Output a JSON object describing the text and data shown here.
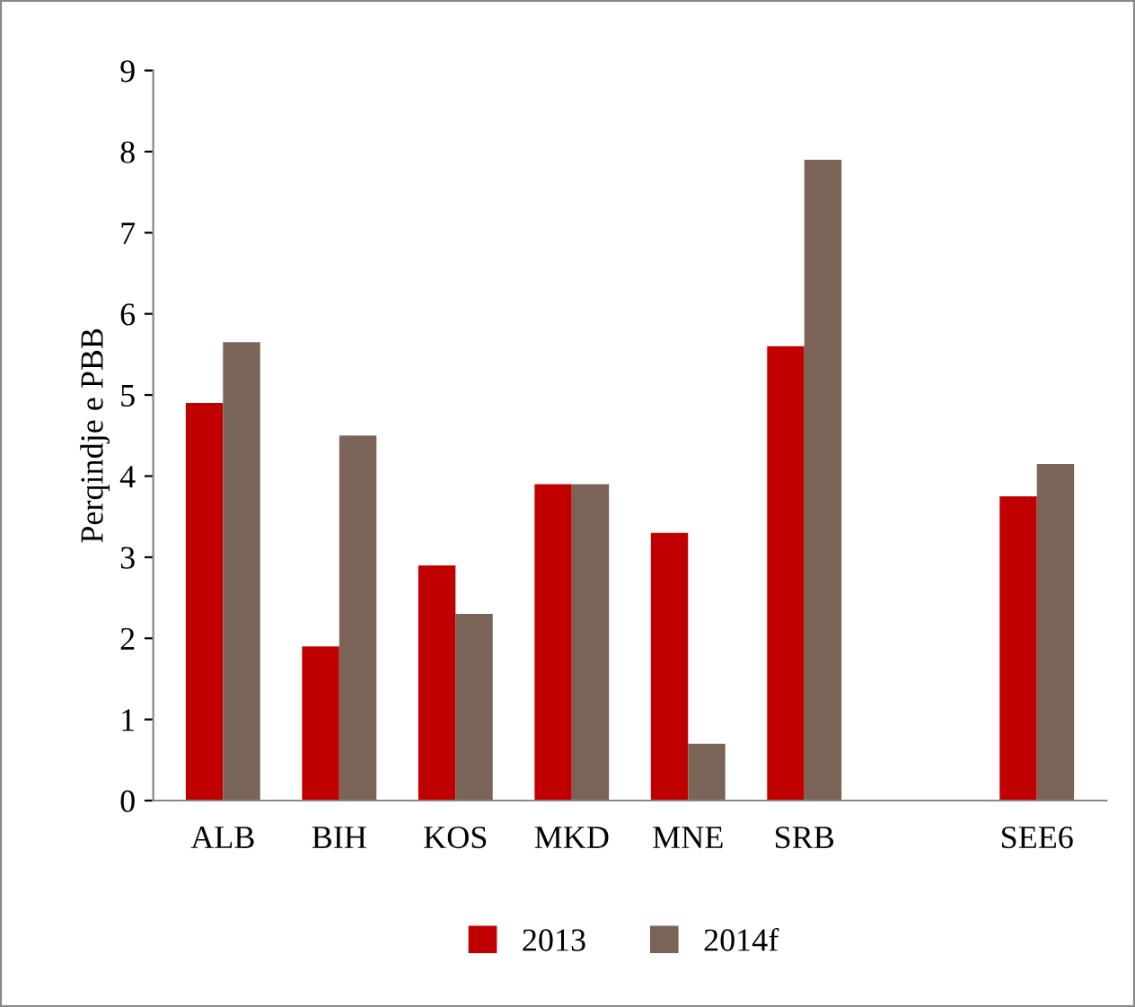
{
  "chart_data": {
    "type": "bar",
    "ylabel": "Perqindje e PBB",
    "categories": [
      "ALB",
      "BIH",
      "KOS",
      "MKD",
      "MNE",
      "SRB",
      null,
      "SEE6"
    ],
    "series": [
      {
        "name": "2013",
        "color": "#c00000",
        "values": [
          4.9,
          1.9,
          2.9,
          3.9,
          3.3,
          5.6,
          null,
          3.75
        ]
      },
      {
        "name": "2014f",
        "color": "#7a6458",
        "values": [
          5.65,
          4.5,
          2.3,
          3.9,
          0.7,
          7.9,
          null,
          4.15
        ]
      }
    ],
    "ylim": [
      0,
      9
    ],
    "yticks": [
      0,
      1,
      2,
      3,
      4,
      5,
      6,
      7,
      8,
      9
    ],
    "grid": false,
    "legend": "bottom"
  }
}
